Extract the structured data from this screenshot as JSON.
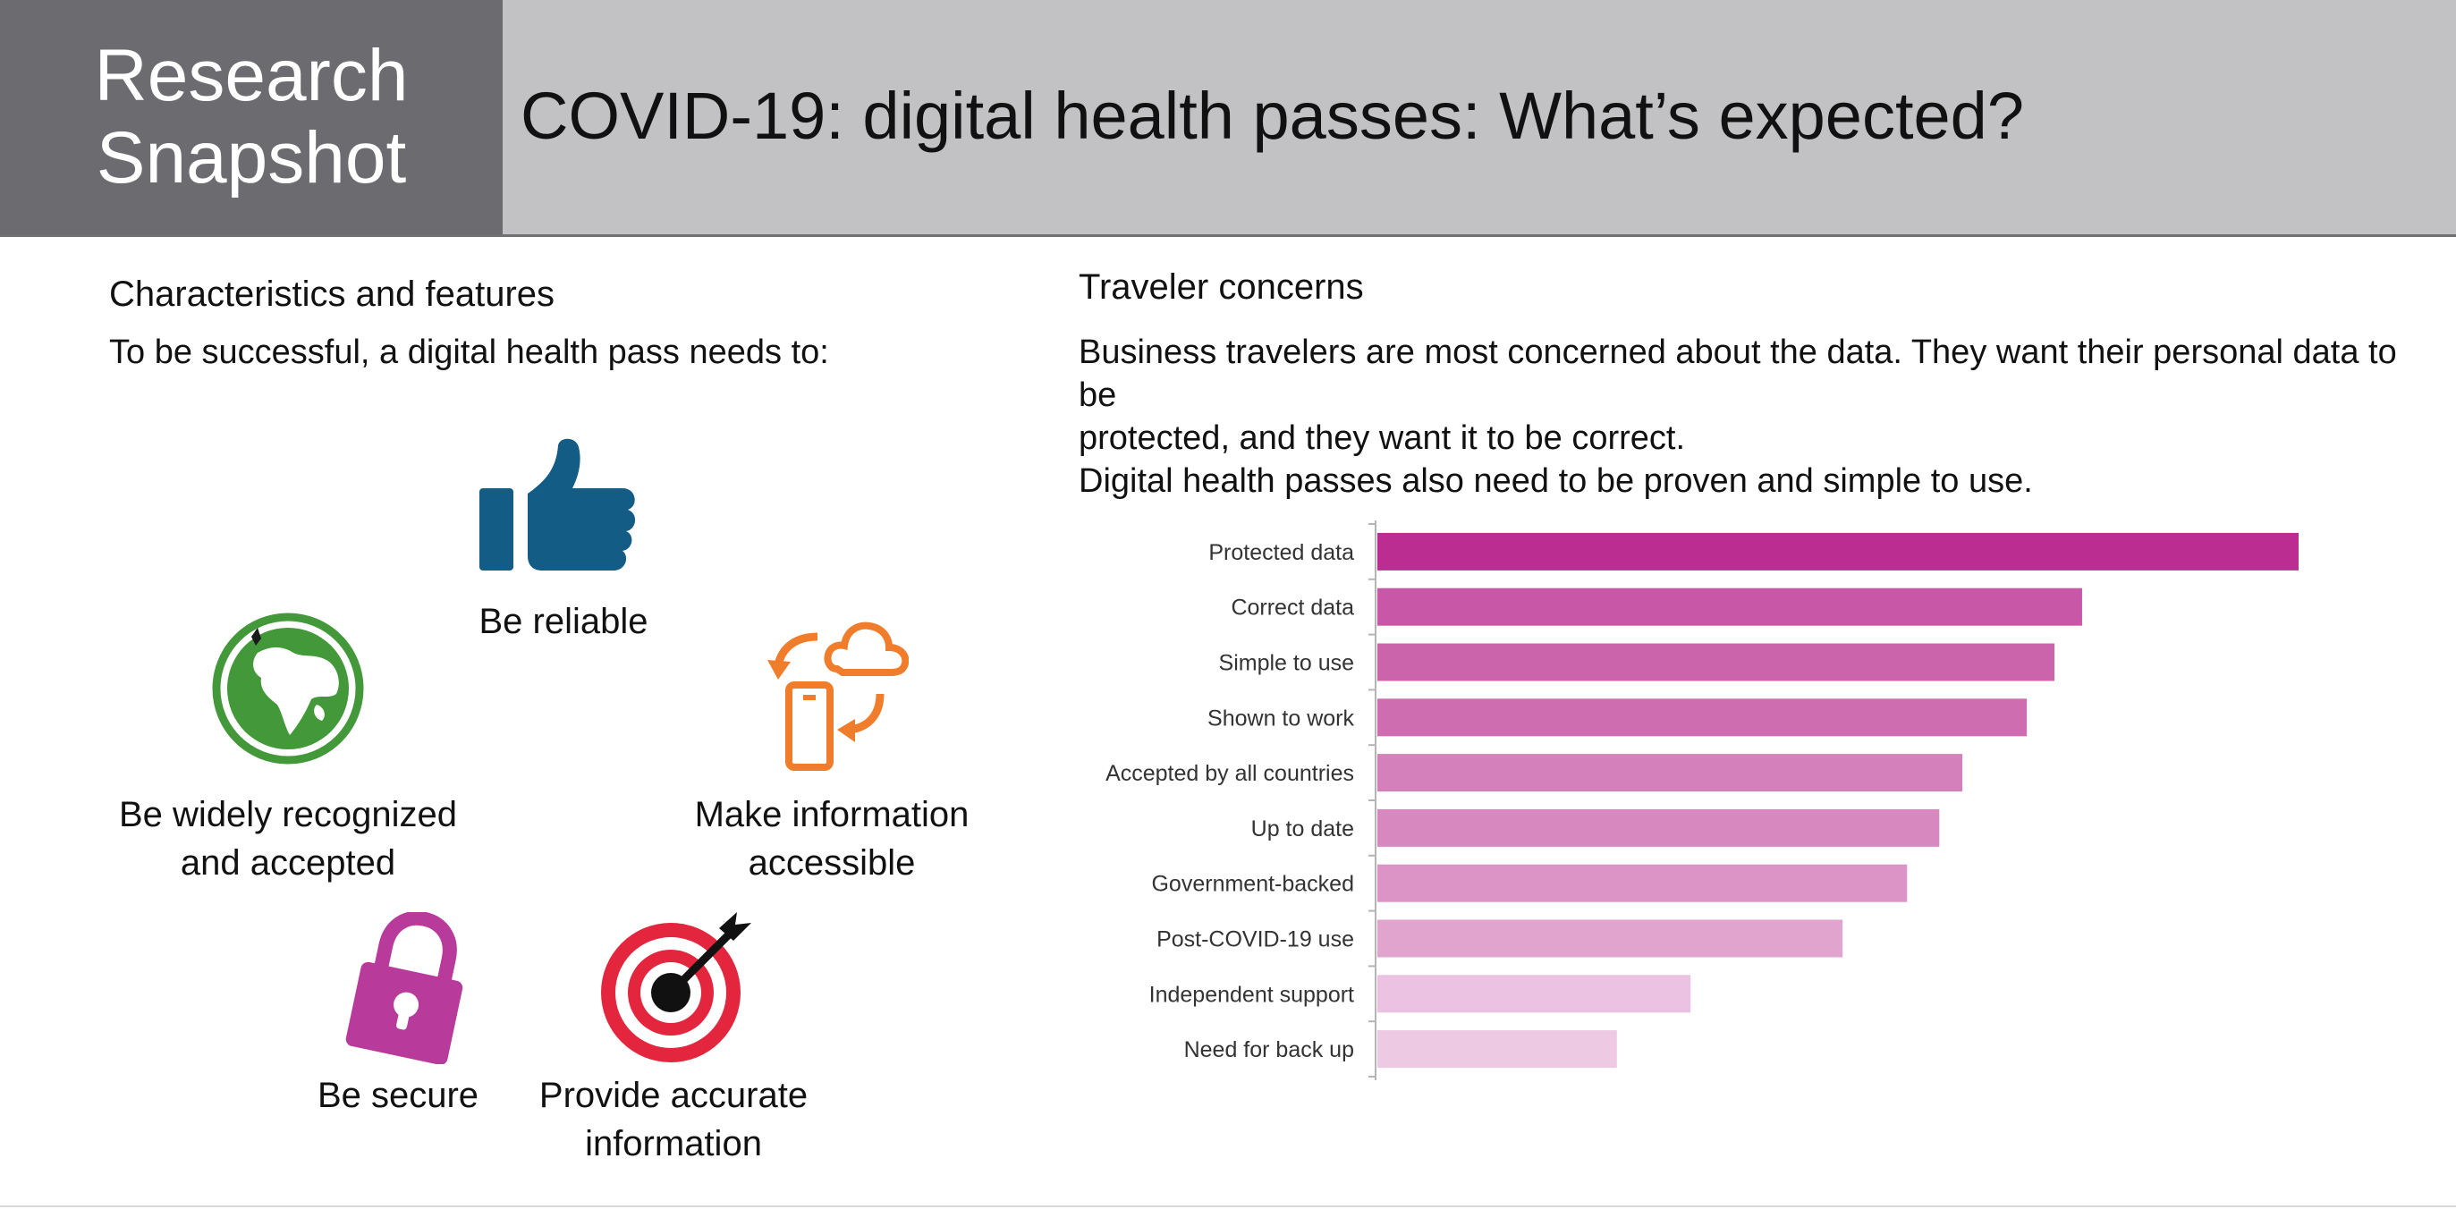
{
  "header": {
    "brand_line1": "Research",
    "brand_line2": "Snapshot",
    "title": "COVID-19: digital health passes: What’s expected?"
  },
  "left": {
    "heading": "Characteristics and features",
    "intro": "To be successful, a digital health pass needs to:",
    "features": [
      {
        "line1": "Be reliable",
        "line2": "",
        "icon": "thumbs-up-icon",
        "color": "#125c85"
      },
      {
        "line1": "Be widely recognized",
        "line2": "and accepted",
        "icon": "globe-icon",
        "color": "#43993a"
      },
      {
        "line1": "Make information",
        "line2": "accessible",
        "icon": "phone-cloud-sync-icon",
        "color": "#ef7d2b"
      },
      {
        "line1": "Be secure",
        "line2": "",
        "icon": "padlock-icon",
        "color": "#b83a9a"
      },
      {
        "line1": "Provide accurate",
        "line2": "information",
        "icon": "target-icon",
        "color": "#e3253d"
      }
    ]
  },
  "right": {
    "heading": "Traveler concerns",
    "text_line1": "Business travelers are most concerned about the data. They want their personal data to be",
    "text_line2": "protected, and they want it to be correct.",
    "text_line3": "Digital health passes also need to be proven and simple to use."
  },
  "chart_data": {
    "type": "bar",
    "orientation": "horizontal",
    "categories": [
      "Protected data",
      "Correct data",
      "Simple to use",
      "Shown to work",
      "Accepted by all countries",
      "Up to date",
      "Government-backed",
      "Post-COVID-19 use",
      "Independent support",
      "Need for back up"
    ],
    "values": [
      100,
      76.5,
      73.5,
      70.5,
      63.5,
      61,
      57.5,
      50.5,
      34,
      26
    ],
    "colors": [
      "#bb2d90",
      "#c957a7",
      "#cc64ac",
      "#ce6db0",
      "#d480ba",
      "#d789bf",
      "#dc94c6",
      "#e0a4cf",
      "#ebc2e1",
      "#edc9e4"
    ],
    "xlim": [
      0,
      100
    ],
    "value_axis_labels": false,
    "grid": false
  }
}
